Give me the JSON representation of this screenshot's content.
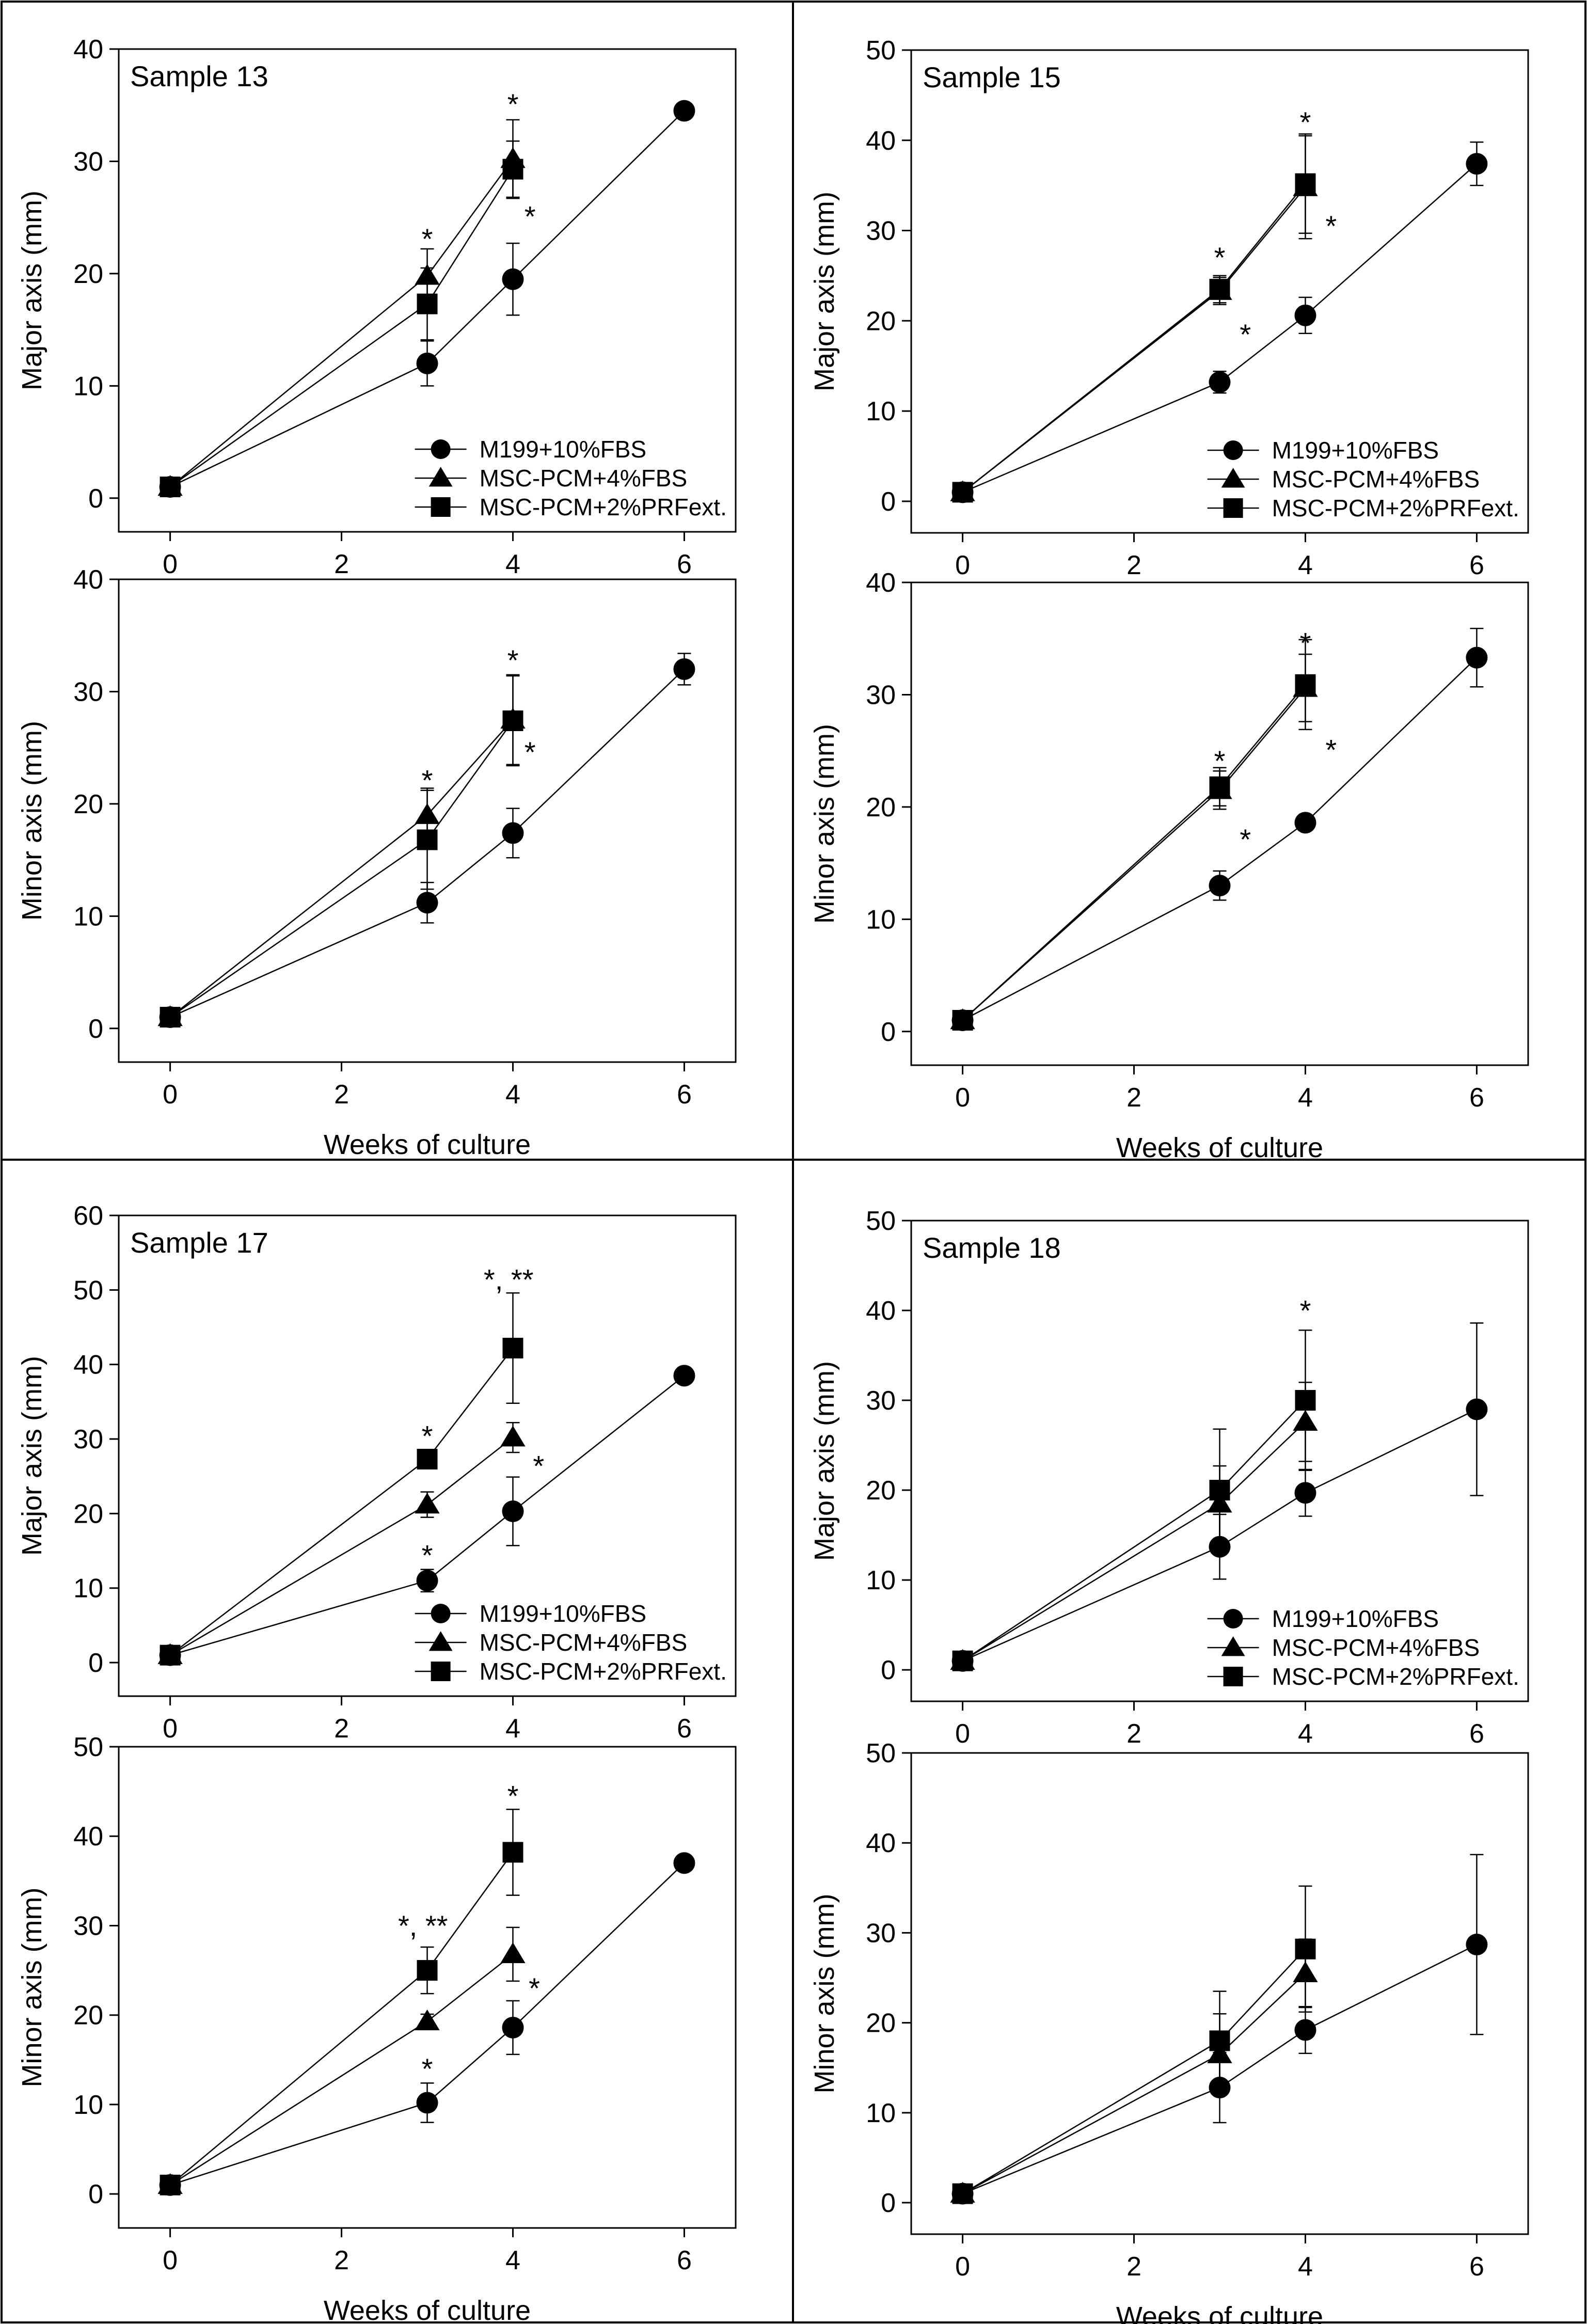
{
  "figure": {
    "x_label": "Weeks of culture",
    "legend": [
      "M199+10%FBS",
      "MSC-PCM+4%FBS",
      "MSC-PCM+2%PRFext."
    ]
  },
  "chart_data": [
    {
      "type": "line",
      "panel": "Sample 13",
      "measure": "major",
      "title": "Sample 13",
      "xlabel": "",
      "ylabel": "Major axis (mm)",
      "xlim": [
        -0.6,
        6.6
      ],
      "ylim": [
        -3,
        40
      ],
      "xticks": [
        0,
        2,
        4,
        6
      ],
      "yticks": [
        0,
        10,
        20,
        30,
        40
      ],
      "legend": true,
      "series": [
        {
          "name": "M199+10%FBS",
          "marker": "circle",
          "x": [
            0,
            3,
            4,
            6
          ],
          "y": [
            1,
            12,
            19.5,
            34.5
          ],
          "err": [
            0.5,
            2,
            3.2,
            0.5
          ]
        },
        {
          "name": "MSC-PCM+4%FBS",
          "marker": "triangle",
          "x": [
            0,
            3,
            4
          ],
          "y": [
            1,
            19.8,
            30.2
          ],
          "err": [
            0.4,
            2.4,
            3.5
          ]
        },
        {
          "name": "MSC-PCM+2%PRFext.",
          "marker": "square",
          "x": [
            0,
            3,
            4
          ],
          "y": [
            1,
            17.3,
            29.3
          ],
          "err": [
            0.4,
            3.2,
            2.5
          ]
        }
      ],
      "annotations": [
        {
          "text": "*",
          "x": 3,
          "y": 23.5
        },
        {
          "text": "*",
          "x": 4,
          "y": 35.5
        },
        {
          "text": "*",
          "x": 4.2,
          "y": 25.5
        }
      ]
    },
    {
      "type": "line",
      "panel": "Sample 13",
      "measure": "minor",
      "title": "",
      "xlabel": "Weeks of culture",
      "ylabel": "Minor axis (mm)",
      "xlim": [
        -0.6,
        6.6
      ],
      "ylim": [
        -3,
        40
      ],
      "xticks": [
        0,
        2,
        4,
        6
      ],
      "yticks": [
        0,
        10,
        20,
        30,
        40
      ],
      "legend": false,
      "series": [
        {
          "name": "M199+10%FBS",
          "marker": "circle",
          "x": [
            0,
            3,
            4,
            6
          ],
          "y": [
            1,
            11.2,
            17.4,
            32
          ],
          "err": [
            0.5,
            1.8,
            2.2,
            1.4
          ]
        },
        {
          "name": "MSC-PCM+4%FBS",
          "marker": "triangle",
          "x": [
            0,
            3,
            4
          ],
          "y": [
            1,
            19,
            27.5
          ],
          "err": [
            0.4,
            2.4,
            4
          ]
        },
        {
          "name": "MSC-PCM+2%PRFext.",
          "marker": "square",
          "x": [
            0,
            3,
            4
          ],
          "y": [
            1,
            16.8,
            27.4
          ],
          "err": [
            0.4,
            4.4,
            4
          ]
        }
      ],
      "annotations": [
        {
          "text": "*",
          "x": 3,
          "y": 22.5
        },
        {
          "text": "*",
          "x": 4,
          "y": 33.2
        },
        {
          "text": "*",
          "x": 4.2,
          "y": 25
        }
      ]
    },
    {
      "type": "line",
      "panel": "Sample 15",
      "measure": "major",
      "title": "Sample 15",
      "xlabel": "",
      "ylabel": "Major axis (mm)",
      "xlim": [
        -0.6,
        6.6
      ],
      "ylim": [
        -3.5,
        50
      ],
      "xticks": [
        0,
        2,
        4,
        6
      ],
      "yticks": [
        0,
        10,
        20,
        30,
        40,
        50
      ],
      "legend": true,
      "series": [
        {
          "name": "M199+10%FBS",
          "marker": "circle",
          "x": [
            0,
            3,
            4,
            6
          ],
          "y": [
            1,
            13.2,
            20.6,
            37.4
          ],
          "err": [
            0.5,
            1.2,
            2,
            2.4
          ]
        },
        {
          "name": "MSC-PCM+4%FBS",
          "marker": "triangle",
          "x": [
            0,
            3,
            4
          ],
          "y": [
            1,
            23.3,
            34.8
          ],
          "err": [
            0.4,
            1.5,
            5.7
          ]
        },
        {
          "name": "MSC-PCM+2%PRFext.",
          "marker": "square",
          "x": [
            0,
            3,
            4
          ],
          "y": [
            1,
            23.5,
            35.2
          ],
          "err": [
            0.4,
            1.5,
            5.5
          ]
        }
      ],
      "annotations": [
        {
          "text": "*",
          "x": 3,
          "y": 27.5
        },
        {
          "text": "*",
          "x": 3.3,
          "y": 19
        },
        {
          "text": "*",
          "x": 4,
          "y": 42.5
        },
        {
          "text": "*",
          "x": 4.3,
          "y": 31
        }
      ]
    },
    {
      "type": "line",
      "panel": "Sample 15",
      "measure": "minor",
      "title": "",
      "xlabel": "Weeks of culture",
      "ylabel": "Minor axis (mm)",
      "xlim": [
        -0.6,
        6.6
      ],
      "ylim": [
        -3,
        40
      ],
      "xticks": [
        0,
        2,
        4,
        6
      ],
      "yticks": [
        0,
        10,
        20,
        30,
        40
      ],
      "legend": false,
      "series": [
        {
          "name": "M199+10%FBS",
          "marker": "circle",
          "x": [
            0,
            3,
            4,
            6
          ],
          "y": [
            1,
            13,
            18.6,
            33.3
          ],
          "err": [
            0.5,
            1.3,
            0.7,
            2.6
          ]
        },
        {
          "name": "MSC-PCM+4%FBS",
          "marker": "triangle",
          "x": [
            0,
            3,
            4
          ],
          "y": [
            1,
            21.5,
            30.6
          ],
          "err": [
            0.4,
            1.7,
            3
          ]
        },
        {
          "name": "MSC-PCM+2%PRFext.",
          "marker": "square",
          "x": [
            0,
            3,
            4
          ],
          "y": [
            1,
            21.8,
            30.9
          ],
          "err": [
            0.4,
            1.7,
            4
          ]
        }
      ],
      "annotations": [
        {
          "text": "*",
          "x": 3,
          "y": 24.5
        },
        {
          "text": "*",
          "x": 3.3,
          "y": 17.5
        },
        {
          "text": "*",
          "x": 4,
          "y": 35
        },
        {
          "text": "*",
          "x": 4.3,
          "y": 25.5
        }
      ]
    },
    {
      "type": "line",
      "panel": "Sample 17",
      "measure": "major",
      "title": "Sample 17",
      "xlabel": "",
      "ylabel": "Major axis (mm)",
      "xlim": [
        -0.6,
        6.6
      ],
      "ylim": [
        -4.5,
        60
      ],
      "xticks": [
        0,
        2,
        4,
        6
      ],
      "yticks": [
        0,
        10,
        20,
        30,
        40,
        50,
        60
      ],
      "legend": true,
      "series": [
        {
          "name": "M199+10%FBS",
          "marker": "circle",
          "x": [
            0,
            3,
            4,
            6
          ],
          "y": [
            1,
            11,
            20.3,
            38.5
          ],
          "err": [
            0.5,
            1.5,
            4.6,
            0.5
          ]
        },
        {
          "name": "MSC-PCM+4%FBS",
          "marker": "triangle",
          "x": [
            0,
            3,
            4
          ],
          "y": [
            1,
            21.2,
            30.2
          ],
          "err": [
            0.4,
            1.7,
            2
          ]
        },
        {
          "name": "MSC-PCM+2%PRFext.",
          "marker": "square",
          "x": [
            0,
            3,
            4
          ],
          "y": [
            1,
            27.3,
            42.2
          ],
          "err": [
            0.4,
            0.8,
            7.4
          ]
        }
      ],
      "annotations": [
        {
          "text": "*",
          "x": 3,
          "y": 31
        },
        {
          "text": "*",
          "x": 3,
          "y": 15
        },
        {
          "text": "*, **",
          "x": 3.95,
          "y": 52
        },
        {
          "text": "*",
          "x": 4.3,
          "y": 27
        }
      ]
    },
    {
      "type": "line",
      "panel": "Sample 17",
      "measure": "minor",
      "title": "",
      "xlabel": "Weeks of culture",
      "ylabel": "Minor axis (mm)",
      "xlim": [
        -0.6,
        6.6
      ],
      "ylim": [
        -3.8,
        50
      ],
      "xticks": [
        0,
        2,
        4,
        6
      ],
      "yticks": [
        0,
        10,
        20,
        30,
        40,
        50
      ],
      "legend": false,
      "series": [
        {
          "name": "M199+10%FBS",
          "marker": "circle",
          "x": [
            0,
            3,
            4,
            6
          ],
          "y": [
            1,
            10.2,
            18.6,
            37
          ],
          "err": [
            0.5,
            2.2,
            3,
            0.5
          ]
        },
        {
          "name": "MSC-PCM+4%FBS",
          "marker": "triangle",
          "x": [
            0,
            3,
            4
          ],
          "y": [
            1,
            19.3,
            26.8
          ],
          "err": [
            0.4,
            0.8,
            3
          ]
        },
        {
          "name": "MSC-PCM+2%PRFext.",
          "marker": "square",
          "x": [
            0,
            3,
            4
          ],
          "y": [
            1,
            25,
            38.2
          ],
          "err": [
            0.4,
            2.6,
            4.8
          ]
        }
      ],
      "annotations": [
        {
          "text": "*, **",
          "x": 2.95,
          "y": 30.5
        },
        {
          "text": "*",
          "x": 3,
          "y": 14.5
        },
        {
          "text": "*",
          "x": 4,
          "y": 45
        },
        {
          "text": "*",
          "x": 4.25,
          "y": 23.5
        }
      ]
    },
    {
      "type": "line",
      "panel": "Sample 18",
      "measure": "major",
      "title": "Sample 18",
      "xlabel": "",
      "ylabel": "Major axis (mm)",
      "xlim": [
        -0.6,
        6.6
      ],
      "ylim": [
        -3.5,
        50
      ],
      "xticks": [
        0,
        2,
        4,
        6
      ],
      "yticks": [
        0,
        10,
        20,
        30,
        40,
        50
      ],
      "legend": true,
      "series": [
        {
          "name": "M199+10%FBS",
          "marker": "circle",
          "x": [
            0,
            3,
            4,
            6
          ],
          "y": [
            1,
            13.7,
            19.7,
            29
          ],
          "err": [
            0.5,
            3.6,
            2.6,
            9.6
          ]
        },
        {
          "name": "MSC-PCM+4%FBS",
          "marker": "triangle",
          "x": [
            0,
            3,
            4
          ],
          "y": [
            1,
            18.5,
            27.6
          ],
          "err": [
            0.4,
            4.2,
            4.4
          ]
        },
        {
          "name": "MSC-PCM+2%PRFext.",
          "marker": "square",
          "x": [
            0,
            3,
            4
          ],
          "y": [
            1,
            20,
            30
          ],
          "err": [
            0.4,
            6.8,
            7.8
          ]
        }
      ],
      "annotations": [
        {
          "text": "*",
          "x": 4,
          "y": 40.5
        }
      ]
    },
    {
      "type": "line",
      "panel": "Sample 18",
      "measure": "minor",
      "title": "",
      "xlabel": "Weeks of culture",
      "ylabel": "Minor axis (mm)",
      "xlim": [
        -0.6,
        6.6
      ],
      "ylim": [
        -3.5,
        50
      ],
      "xticks": [
        0,
        2,
        4,
        6
      ],
      "yticks": [
        0,
        10,
        20,
        30,
        40,
        50
      ],
      "legend": false,
      "series": [
        {
          "name": "M199+10%FBS",
          "marker": "circle",
          "x": [
            0,
            3,
            4,
            6
          ],
          "y": [
            1,
            12.8,
            19.2,
            28.7
          ],
          "err": [
            0.5,
            3.9,
            2.6,
            10
          ]
        },
        {
          "name": "MSC-PCM+4%FBS",
          "marker": "triangle",
          "x": [
            0,
            3,
            4
          ],
          "y": [
            1,
            16.5,
            25.5
          ],
          "err": [
            0.4,
            4.5,
            3.8
          ]
        },
        {
          "name": "MSC-PCM+2%PRFext.",
          "marker": "square",
          "x": [
            0,
            3,
            4
          ],
          "y": [
            1,
            18,
            28.2
          ],
          "err": [
            0.4,
            5.5,
            7
          ]
        }
      ],
      "annotations": []
    }
  ]
}
